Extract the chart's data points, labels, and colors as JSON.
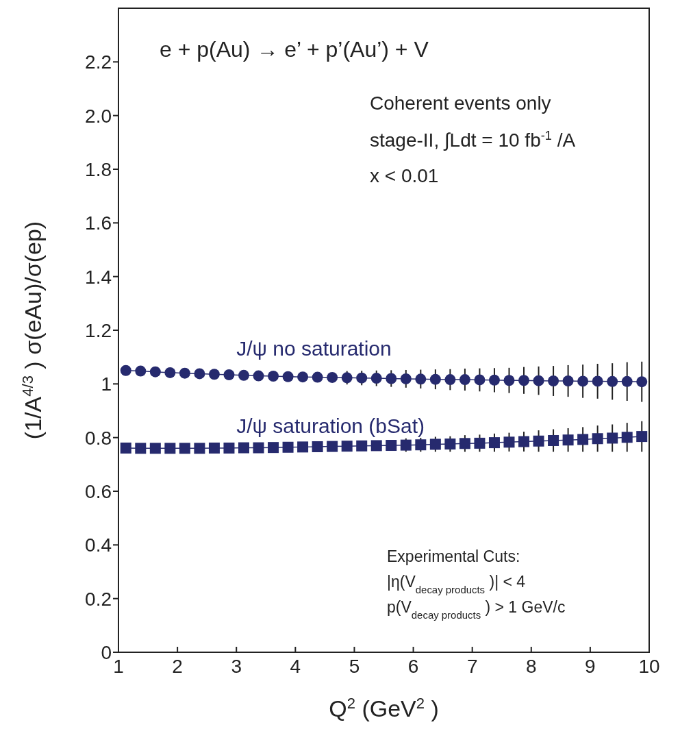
{
  "chart_data": {
    "type": "line",
    "xlabel": "Q$^{2}$ (GeV$^{2}$)",
    "ylabel": "(1/A$^{4/3}$) σ(eAu)/σ(ep)",
    "annotations": [
      "e  + p(Au) →  e’ + p’(Au’) + V",
      "Coherent events only",
      "stage-II,  ∫Ldt = 10 fb$^{-1}$/A",
      "x < 0.01",
      "Experimental Cuts:",
      "|η(V$_{decay products}$)| < 4",
      "p(V$_{decay products}$) > 1 GeV/c"
    ],
    "x": [
      1.125,
      1.375,
      1.625,
      1.875,
      2.125,
      2.375,
      2.625,
      2.875,
      3.125,
      3.375,
      3.625,
      3.875,
      4.125,
      4.375,
      4.625,
      4.875,
      5.125,
      5.375,
      5.625,
      5.875,
      6.125,
      6.375,
      6.625,
      6.875,
      7.125,
      7.375,
      7.625,
      7.875,
      8.125,
      8.375,
      8.625,
      8.875,
      9.125,
      9.375,
      9.625,
      9.875
    ],
    "series": [
      {
        "name": "J/ψ no saturation",
        "color": "#262a6e",
        "marker": "circle",
        "values": [
          1.05,
          1.048,
          1.045,
          1.042,
          1.04,
          1.038,
          1.036,
          1.034,
          1.032,
          1.03,
          1.029,
          1.027,
          1.026,
          1.025,
          1.024,
          1.023,
          1.022,
          1.021,
          1.02,
          1.019,
          1.018,
          1.017,
          1.016,
          1.016,
          1.015,
          1.014,
          1.013,
          1.013,
          1.012,
          1.011,
          1.011,
          1.01,
          1.01,
          1.009,
          1.009,
          1.008
        ],
        "errors": [
          null,
          null,
          null,
          null,
          null,
          null,
          null,
          null,
          null,
          null,
          null,
          null,
          null,
          null,
          null,
          0.025,
          0.027,
          0.029,
          0.031,
          0.033,
          0.035,
          0.037,
          0.039,
          0.041,
          0.043,
          0.045,
          0.047,
          0.05,
          0.053,
          0.056,
          0.059,
          0.062,
          0.065,
          0.068,
          0.072,
          0.075
        ]
      },
      {
        "name": "J/ψ saturation (bSat)",
        "color": "#262a6e",
        "marker": "square",
        "values": [
          0.761,
          0.76,
          0.76,
          0.76,
          0.76,
          0.76,
          0.761,
          0.761,
          0.762,
          0.762,
          0.763,
          0.764,
          0.765,
          0.766,
          0.767,
          0.768,
          0.769,
          0.77,
          0.771,
          0.772,
          0.773,
          0.775,
          0.776,
          0.778,
          0.779,
          0.781,
          0.783,
          0.785,
          0.787,
          0.789,
          0.791,
          0.793,
          0.796,
          0.798,
          0.801,
          0.804
        ],
        "errors": [
          null,
          null,
          null,
          null,
          null,
          null,
          null,
          null,
          null,
          null,
          null,
          null,
          null,
          null,
          null,
          null,
          null,
          null,
          null,
          0.025,
          0.026,
          0.028,
          0.029,
          0.031,
          0.032,
          0.034,
          0.035,
          0.037,
          0.04,
          0.042,
          0.044,
          0.046,
          0.049,
          0.051,
          0.054,
          0.057
        ]
      }
    ],
    "xlim": [
      1,
      10
    ],
    "xticks": [
      1,
      2,
      3,
      4,
      5,
      6,
      7,
      8,
      9,
      10
    ],
    "ylim": [
      0,
      2.4
    ],
    "yticks": [
      0,
      0.2,
      0.4,
      0.6,
      0.8,
      1,
      1.2,
      1.4,
      1.6,
      {
        "value": 1.8,
        "label": "1.8"
      },
      {
        "value": 2,
        "label": "2.0"
      },
      2.2
    ],
    "grid": false,
    "line_style": "solid"
  }
}
